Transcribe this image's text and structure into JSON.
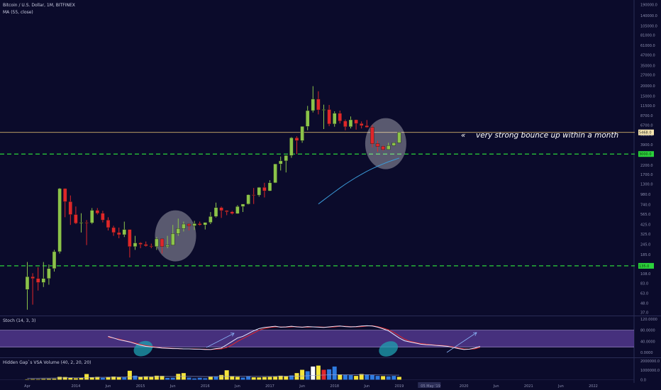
{
  "header": {
    "symbol": "Bitcoin / U.S. Dollar, 1M, BITFINEX",
    "ma": "MA (55, close)",
    "stoch": "Stoch (14, 3, 3)",
    "vsa": "Hidden Gap`s VSA Volume (40, 2, 20, 20)"
  },
  "annotation": "very strong bounce up within a month",
  "annotation_arrow": "«",
  "price_badges": {
    "current": "5468.0",
    "green_upper": "3000.0",
    "green_lower": "135.0"
  },
  "colors": {
    "background": "#0b0b2b",
    "up": "#8bc34a",
    "down": "#e0262a",
    "ma_line": "#3b9bd9",
    "green_level": "#2bd33b",
    "price_line": "#e8c172",
    "stoch_band": "#5b3d99",
    "vol_yellow": "#f5e43a",
    "vol_blue": "#2f7be0",
    "vol_red": "#e0262a",
    "vol_white": "#ffffff"
  },
  "chart_data": [
    {
      "type": "candlestick",
      "title": "Bitcoin / U.S. Dollar, 1M, BITFINEX",
      "yscale": "log",
      "ylim": [
        34,
        215000
      ],
      "y_ticks": [
        "190000.0",
        "140000.0",
        "105000.0",
        "81000.0",
        "61000.0",
        "47000.0",
        "35000.0",
        "27000.0",
        "20000.0",
        "15000.0",
        "11500.0",
        "8700.0",
        "6700.0",
        "5100.0",
        "3900.0",
        "3000.0",
        "2200.0",
        "1700.0",
        "1300.0",
        "980.0",
        "740.0",
        "565.0",
        "425.0",
        "325.0",
        "245.0",
        "185.0",
        "140.0",
        "108.0",
        "83.0",
        "63.0",
        "48.0",
        "37.0"
      ],
      "x_ticks": [
        "Apr",
        "2014",
        "Jun",
        "2015",
        "Jun",
        "2016",
        "Jun",
        "2017",
        "Jun",
        "2018",
        "Jun",
        "2019",
        "05 May '19",
        "2020",
        "Jun",
        "2021",
        "Jun",
        "2022"
      ],
      "x_tick_positions_months": [
        -9,
        0,
        6,
        12,
        18,
        24,
        30,
        36,
        42,
        48,
        54,
        60,
        64,
        72,
        78,
        84,
        90,
        96
      ],
      "start_month": "2013-04",
      "candles": [
        [
          70,
          150,
          40,
          100
        ],
        [
          100,
          110,
          46,
          95
        ],
        [
          95,
          130,
          68,
          85
        ],
        [
          85,
          150,
          75,
          95
        ],
        [
          95,
          140,
          80,
          125
        ],
        [
          125,
          210,
          115,
          200
        ],
        [
          200,
          1170,
          190,
          1150
        ],
        [
          1150,
          1160,
          520,
          800
        ],
        [
          800,
          950,
          420,
          560
        ],
        [
          560,
          700,
          430,
          440
        ],
        [
          440,
          580,
          340,
          450
        ],
        [
          450,
          480,
          240,
          445
        ],
        [
          445,
          670,
          430,
          630
        ],
        [
          630,
          670,
          560,
          580
        ],
        [
          580,
          620,
          450,
          480
        ],
        [
          480,
          520,
          360,
          390
        ],
        [
          390,
          410,
          310,
          340
        ],
        [
          340,
          390,
          290,
          320
        ],
        [
          320,
          460,
          300,
          370
        ],
        [
          370,
          370,
          170,
          230
        ],
        [
          230,
          310,
          210,
          255
        ],
        [
          255,
          260,
          220,
          245
        ],
        [
          245,
          265,
          230,
          235
        ],
        [
          235,
          250,
          220,
          230
        ],
        [
          230,
          300,
          210,
          285
        ],
        [
          285,
          290,
          190,
          230
        ],
        [
          230,
          310,
          220,
          240
        ],
        [
          240,
          420,
          240,
          330
        ],
        [
          330,
          500,
          310,
          380
        ],
        [
          380,
          460,
          350,
          430
        ],
        [
          430,
          440,
          360,
          410
        ],
        [
          410,
          470,
          365,
          435
        ],
        [
          435,
          460,
          410,
          420
        ],
        [
          420,
          450,
          370,
          450
        ],
        [
          450,
          600,
          430,
          530
        ],
        [
          530,
          780,
          515,
          680
        ],
        [
          680,
          700,
          510,
          625
        ],
        [
          625,
          630,
          550,
          605
        ],
        [
          605,
          620,
          560,
          575
        ],
        [
          575,
          725,
          570,
          700
        ],
        [
          700,
          740,
          600,
          750
        ],
        [
          750,
          980,
          740,
          970
        ],
        [
          970,
          1170,
          750,
          960
        ],
        [
          960,
          1200,
          920,
          1190
        ],
        [
          1190,
          1350,
          900,
          1080
        ],
        [
          1080,
          1450,
          1070,
          1350
        ],
        [
          1350,
          2100,
          1340,
          2280
        ],
        [
          2280,
          2800,
          1900,
          2480
        ],
        [
          2480,
          2900,
          1800,
          2880
        ],
        [
          2880,
          4800,
          2700,
          4700
        ],
        [
          4700,
          4900,
          3000,
          4350
        ],
        [
          4350,
          6400,
          4100,
          6450
        ],
        [
          6450,
          11400,
          5800,
          10000
        ],
        [
          10000,
          19700,
          9500,
          13800
        ],
        [
          13800,
          17100,
          9000,
          10200
        ],
        [
          10200,
          11800,
          6000,
          10300
        ],
        [
          10300,
          11700,
          6500,
          6900
        ],
        [
          6900,
          9800,
          6400,
          9300
        ],
        [
          9300,
          10000,
          7000,
          7500
        ],
        [
          7500,
          7800,
          5800,
          6400
        ],
        [
          6400,
          8500,
          6100,
          7750
        ],
        [
          7750,
          7800,
          5900,
          7000
        ],
        [
          7000,
          7400,
          6100,
          6600
        ],
        [
          6600,
          7700,
          6200,
          6300
        ],
        [
          6300,
          6700,
          3600,
          4000
        ],
        [
          4000,
          4350,
          3200,
          3700
        ],
        [
          3700,
          3800,
          3300,
          3400
        ],
        [
          3400,
          4100,
          3400,
          3800
        ],
        [
          3800,
          4150,
          3750,
          4100
        ],
        [
          4100,
          5600,
          4050,
          5468
        ]
      ],
      "ma55": {
        "start_index": 54,
        "values": [
          750,
          840,
          940,
          1050,
          1170,
          1300,
          1430,
          1570,
          1710,
          1860,
          2000,
          2140,
          2280,
          2420,
          2550,
          2680
        ]
      },
      "horizontal_levels": [
        {
          "name": "green-upper-level",
          "value": 3000
        },
        {
          "name": "green-lower-level",
          "value": 135
        },
        {
          "name": "current-price-line",
          "value": 5468
        }
      ],
      "highlights": [
        {
          "name": "highlight-2015",
          "center_index": 27.5,
          "center_value": 310
        },
        {
          "name": "highlight-2019",
          "center_index": 66.5,
          "center_value": 4000
        }
      ]
    },
    {
      "type": "line",
      "title": "Stoch (14, 3, 3)",
      "ylim": [
        -20,
        125
      ],
      "y_ticks": [
        "120.0000",
        "80.0000",
        "40.0000",
        "0.0000"
      ],
      "band": [
        20,
        80
      ],
      "k": [
        58,
        52,
        46,
        42,
        38,
        32,
        26,
        22,
        20,
        18,
        16,
        15,
        14,
        14,
        13,
        13,
        12,
        12,
        11,
        11,
        14,
        16,
        28,
        40,
        52,
        58,
        68,
        78,
        86,
        90,
        92,
        94,
        91,
        92,
        94,
        92,
        91,
        93,
        92,
        91,
        90,
        92,
        94,
        95,
        93,
        92,
        93,
        95,
        96,
        95,
        91,
        85,
        78,
        65,
        52,
        42,
        38,
        34,
        30,
        28,
        27,
        25,
        24,
        22,
        18,
        14,
        11,
        12,
        16,
        22
      ],
      "d": [
        55,
        52,
        48,
        43,
        39,
        34,
        29,
        25,
        22,
        19,
        17,
        16,
        15,
        14,
        13,
        13,
        13,
        12,
        12,
        11,
        12,
        13,
        18,
        28,
        40,
        50,
        60,
        70,
        80,
        86,
        90,
        92,
        92,
        91,
        92,
        93,
        91,
        91,
        92,
        92,
        91,
        91,
        92,
        94,
        94,
        93,
        92,
        93,
        95,
        96,
        93,
        88,
        82,
        72,
        60,
        48,
        40,
        36,
        32,
        30,
        28,
        26,
        25,
        23,
        20,
        16,
        13,
        12,
        13,
        18
      ]
    },
    {
      "type": "bar",
      "title": "Hidden Gap`s VSA Volume (40, 2, 20, 20)",
      "ylim": [
        -120000,
        2300000
      ],
      "y_ticks": [
        "2000000.0",
        "1000000.0",
        "0.0"
      ],
      "values": [
        40000,
        60000,
        50000,
        80000,
        90000,
        100000,
        300000,
        280000,
        220000,
        150000,
        180000,
        600000,
        240000,
        300000,
        200000,
        280000,
        330000,
        300000,
        250000,
        950000,
        430000,
        280000,
        350000,
        290000,
        420000,
        400000,
        180000,
        200000,
        620000,
        700000,
        220000,
        130000,
        200000,
        150000,
        300000,
        320000,
        500000,
        1000000,
        380000,
        300000,
        220000,
        350000,
        250000,
        240000,
        280000,
        300000,
        320000,
        420000,
        380000,
        450000,
        700000,
        1050000,
        900000,
        1400000,
        1500000,
        1050000,
        1100000,
        1400000,
        520000,
        500000,
        480000,
        400000,
        600000,
        550000,
        500000,
        400000,
        380000,
        350000,
        400000,
        300000
      ],
      "colors": [
        "y",
        "y",
        "y",
        "y",
        "y",
        "y",
        "y",
        "y",
        "y",
        "y",
        "y",
        "y",
        "y",
        "y",
        "b",
        "y",
        "y",
        "y",
        "b",
        "y",
        "b",
        "y",
        "y",
        "y",
        "y",
        "y",
        "b",
        "b",
        "y",
        "y",
        "b",
        "b",
        "b",
        "b",
        "y",
        "b",
        "y",
        "y",
        "y",
        "y",
        "b",
        "b",
        "y",
        "y",
        "y",
        "y",
        "y",
        "y",
        "y",
        "b",
        "y",
        "y",
        "b",
        "w",
        "y",
        "r",
        "b",
        "b",
        "y",
        "b",
        "b",
        "y",
        "y",
        "b",
        "b",
        "b",
        "y",
        "b",
        "b",
        "y"
      ],
      "avg_line": [
        150000,
        155000,
        160000,
        165000,
        170000,
        175000,
        185000,
        195000,
        205000,
        210000,
        215000,
        240000,
        245000,
        250000,
        255000,
        260000,
        265000,
        270000,
        275000,
        300000,
        310000,
        315000,
        320000,
        325000,
        330000,
        335000,
        335000,
        330000,
        335000,
        345000,
        345000,
        340000,
        335000,
        330000,
        330000,
        330000,
        335000,
        345000,
        350000,
        350000,
        345000,
        345000,
        345000,
        345000,
        345000,
        345000,
        350000,
        355000,
        360000,
        365000,
        375000,
        395000,
        415000,
        445000,
        470000,
        490000,
        510000,
        530000,
        535000,
        535000,
        530000,
        520000,
        515000,
        510000,
        505000,
        500000,
        495000,
        490000,
        485000,
        480000
      ]
    }
  ]
}
